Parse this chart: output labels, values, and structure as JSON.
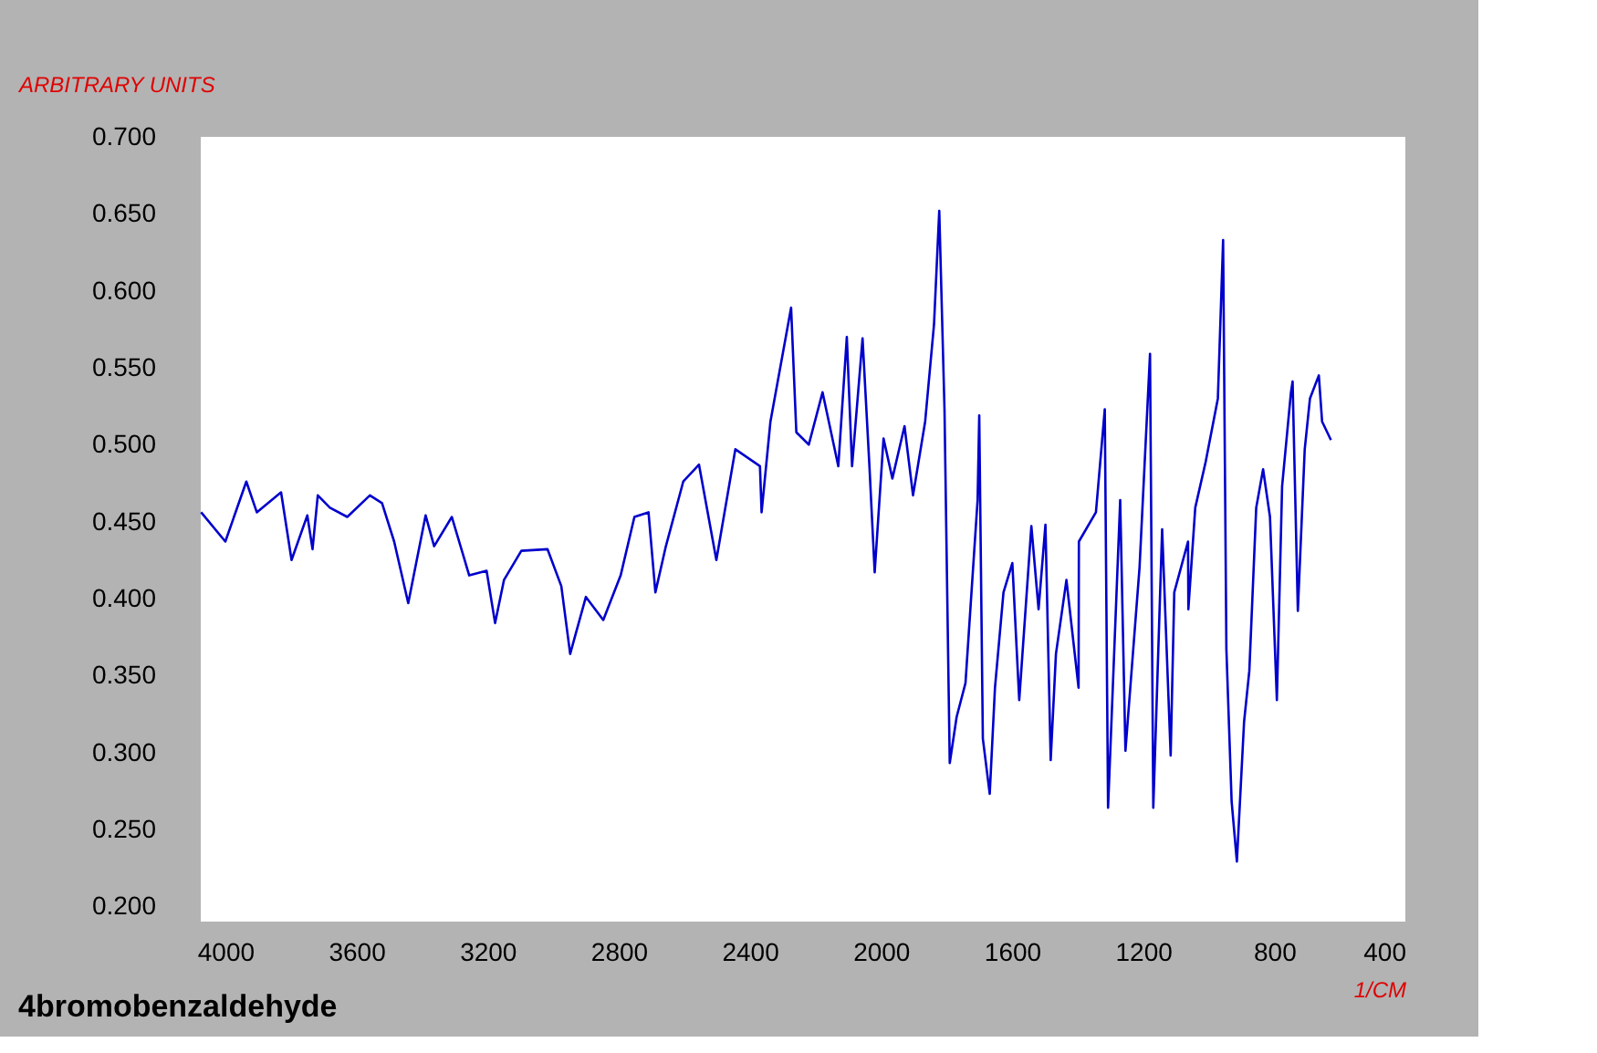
{
  "chart_data": {
    "type": "line",
    "title": "4bromobenzaldehyde",
    "xlabel": "1/CM",
    "ylabel": "ARBITRARY UNITS",
    "xlim": [
      4075,
      400
    ],
    "ylim": [
      0.19,
      0.7
    ],
    "xticks": [
      4000,
      3600,
      3200,
      2800,
      2400,
      2000,
      1600,
      1200,
      800,
      400
    ],
    "yticks": [
      {
        "value": 0.2,
        "label": "0.200"
      },
      {
        "value": 0.25,
        "label": "0.250"
      },
      {
        "value": 0.3,
        "label": "0.300"
      },
      {
        "value": 0.35,
        "label": "0.350"
      },
      {
        "value": 0.4,
        "label": "0.400"
      },
      {
        "value": 0.45,
        "label": "0.450"
      },
      {
        "value": 0.5,
        "label": "0.500"
      },
      {
        "value": 0.55,
        "label": "0.550"
      },
      {
        "value": 0.6,
        "label": "0.600"
      },
      {
        "value": 0.65,
        "label": "0.650"
      },
      {
        "value": 0.7,
        "label": "0.700"
      }
    ],
    "series": [
      {
        "color": "#0000cc",
        "x": [
          4074,
          4000,
          3936,
          3904,
          3830,
          3798,
          3750,
          3734,
          3718,
          3681,
          3628,
          3559,
          3522,
          3485,
          3442,
          3389,
          3363,
          3309,
          3256,
          3203,
          3177,
          3150,
          3097,
          3017,
          2975,
          2948,
          2900,
          2847,
          2794,
          2752,
          2709,
          2688,
          2656,
          2603,
          2555,
          2502,
          2444,
          2369,
          2364,
          2337,
          2274,
          2258,
          2220,
          2178,
          2130,
          2104,
          2088,
          2056,
          2035,
          2019,
          1992,
          1965,
          1928,
          1902,
          1865,
          1838,
          1822,
          1806,
          1790,
          1769,
          1742,
          1705,
          1700,
          1689,
          1668,
          1652,
          1626,
          1599,
          1578,
          1541,
          1519,
          1498,
          1482,
          1466,
          1434,
          1397,
          1396,
          1344,
          1317,
          1307,
          1270,
          1254,
          1211,
          1179,
          1169,
          1142,
          1116,
          1105,
          1063,
          1062,
          1041,
          1009,
          972,
          956,
          946,
          930,
          914,
          892,
          876,
          855,
          834,
          813,
          792,
          776,
          749,
          744,
          728,
          707,
          691,
          664,
          654,
          627
        ],
        "values": [
          0.456,
          0.437,
          0.476,
          0.456,
          0.469,
          0.425,
          0.454,
          0.432,
          0.467,
          0.459,
          0.453,
          0.467,
          0.462,
          0.437,
          0.397,
          0.454,
          0.434,
          0.453,
          0.415,
          0.418,
          0.384,
          0.412,
          0.431,
          0.432,
          0.408,
          0.364,
          0.401,
          0.386,
          0.415,
          0.453,
          0.456,
          0.404,
          0.434,
          0.476,
          0.487,
          0.425,
          0.497,
          0.486,
          0.456,
          0.515,
          0.589,
          0.508,
          0.5,
          0.534,
          0.486,
          0.57,
          0.486,
          0.569,
          0.486,
          0.417,
          0.504,
          0.478,
          0.512,
          0.467,
          0.515,
          0.578,
          0.652,
          0.523,
          0.293,
          0.323,
          0.345,
          0.464,
          0.519,
          0.309,
          0.273,
          0.342,
          0.404,
          0.423,
          0.334,
          0.447,
          0.393,
          0.448,
          0.295,
          0.364,
          0.412,
          0.342,
          0.437,
          0.456,
          0.523,
          0.264,
          0.464,
          0.301,
          0.42,
          0.559,
          0.264,
          0.445,
          0.298,
          0.404,
          0.437,
          0.393,
          0.459,
          0.489,
          0.53,
          0.633,
          0.367,
          0.268,
          0.229,
          0.32,
          0.353,
          0.459,
          0.484,
          0.453,
          0.334,
          0.473,
          0.534,
          0.541,
          0.392,
          0.497,
          0.53,
          0.545,
          0.515,
          0.503
        ]
      }
    ]
  }
}
